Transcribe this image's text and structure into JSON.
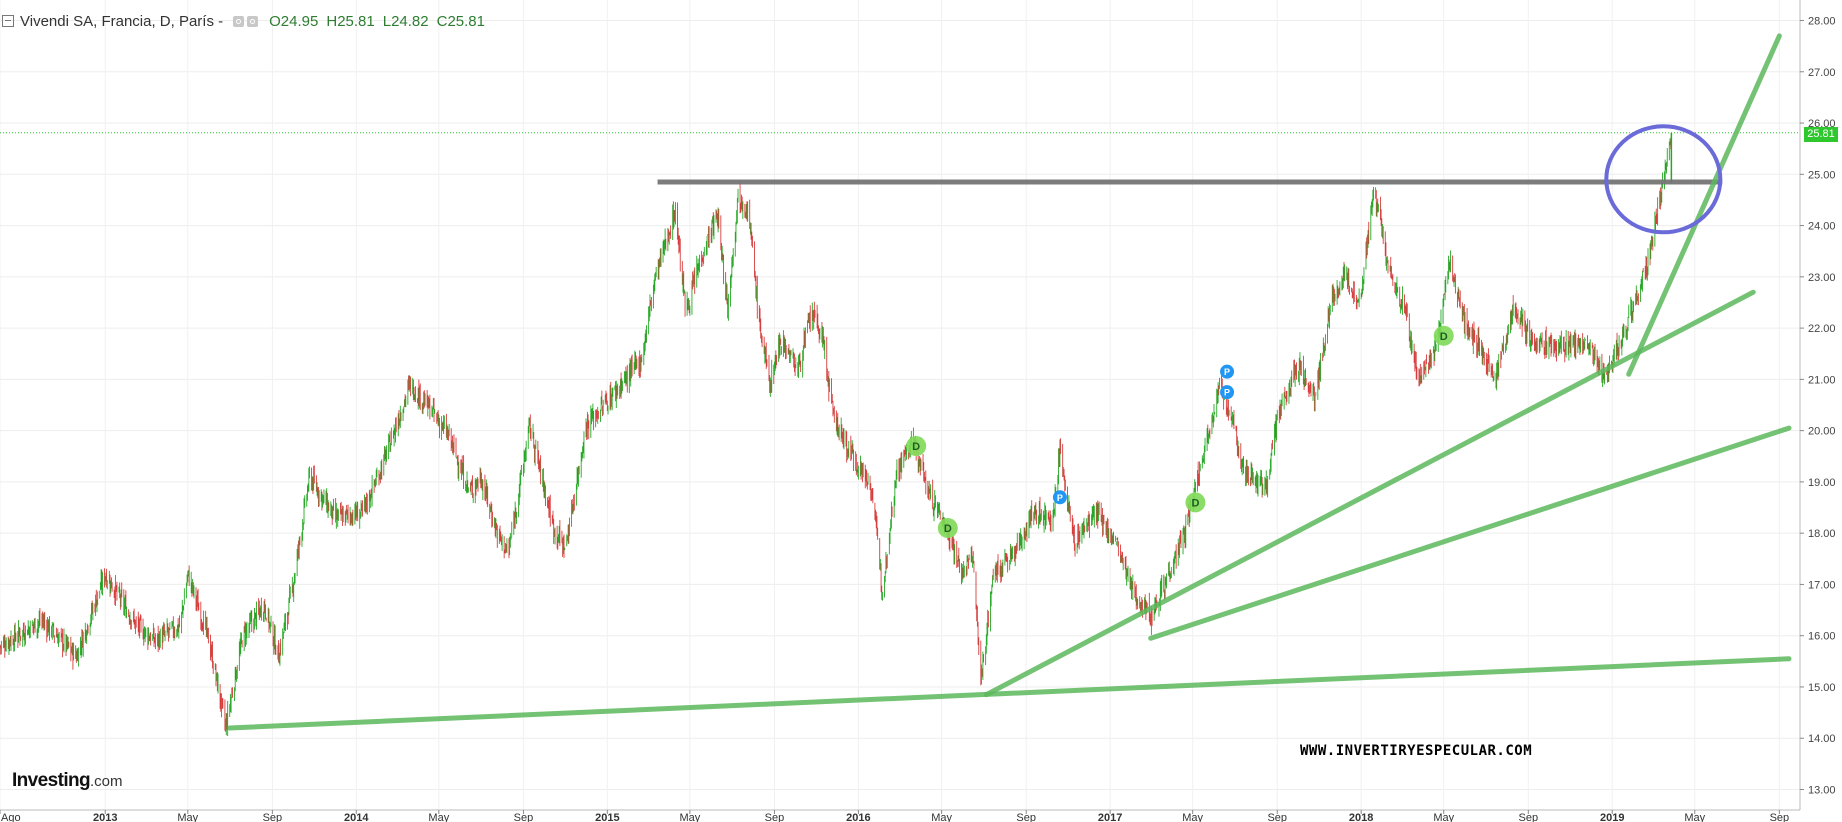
{
  "header": {
    "symbol": "Vivendi SA, Francia, D, París -",
    "open": "O24.95",
    "high": "H25.81",
    "low": "L24.82",
    "close": "C25.81"
  },
  "brand": {
    "name": "Investing",
    "suffix": ".com"
  },
  "watermark": "WWW.INVERTIRYESPECULAR.COM",
  "last_price_label": "25.81",
  "colors": {
    "up": "#26a826",
    "down": "#d63c3c",
    "trendline": "#5cb85c",
    "resistance": "#757575",
    "highlight_circle": "#6a6ad8",
    "dividend_marker": "#7ed957",
    "p_marker": "#2196f3",
    "price_tag": "#2ec72e"
  },
  "chart_data": {
    "type": "candlestick",
    "title": "Vivendi SA, Francia, D, París",
    "ylim": [
      12.6,
      28.4
    ],
    "xlim": [
      "2012-08-01",
      "2019-10-01"
    ],
    "y_ticks": [
      "13.00",
      "14.00",
      "15.00",
      "16.00",
      "17.00",
      "18.00",
      "19.00",
      "20.00",
      "21.00",
      "22.00",
      "23.00",
      "24.00",
      "25.00",
      "26.00",
      "27.00",
      "28.00"
    ],
    "x_ticks": [
      {
        "label": "Ago",
        "date": "2012-08-01"
      },
      {
        "label": "2013",
        "date": "2013-01-01"
      },
      {
        "label": "May",
        "date": "2013-05-01"
      },
      {
        "label": "Sep",
        "date": "2013-09-01"
      },
      {
        "label": "2014",
        "date": "2014-01-01"
      },
      {
        "label": "May",
        "date": "2014-05-01"
      },
      {
        "label": "Sep",
        "date": "2014-09-01"
      },
      {
        "label": "2015",
        "date": "2015-01-01"
      },
      {
        "label": "May",
        "date": "2015-05-01"
      },
      {
        "label": "Sep",
        "date": "2015-09-01"
      },
      {
        "label": "2016",
        "date": "2016-01-01"
      },
      {
        "label": "May",
        "date": "2016-05-01"
      },
      {
        "label": "Sep",
        "date": "2016-09-01"
      },
      {
        "label": "2017",
        "date": "2017-01-01"
      },
      {
        "label": "May",
        "date": "2017-05-01"
      },
      {
        "label": "Sep",
        "date": "2017-09-01"
      },
      {
        "label": "2018",
        "date": "2018-01-01"
      },
      {
        "label": "May",
        "date": "2018-05-01"
      },
      {
        "label": "Sep",
        "date": "2018-09-01"
      },
      {
        "label": "2019",
        "date": "2019-01-01"
      },
      {
        "label": "May",
        "date": "2019-05-01"
      },
      {
        "label": "Sep",
        "date": "2019-09-01"
      }
    ],
    "price_path": [
      [
        "2012-08-01",
        15.8
      ],
      [
        "2012-10-01",
        16.3
      ],
      [
        "2012-11-20",
        15.6
      ],
      [
        "2013-01-01",
        17.2
      ],
      [
        "2013-02-15",
        16.2
      ],
      [
        "2013-03-15",
        15.9
      ],
      [
        "2013-04-20",
        16.2
      ],
      [
        "2013-05-01",
        17.2
      ],
      [
        "2013-06-01",
        15.9
      ],
      [
        "2013-06-25",
        14.2
      ],
      [
        "2013-07-20",
        16.0
      ],
      [
        "2013-08-20",
        16.6
      ],
      [
        "2013-09-10",
        15.6
      ],
      [
        "2013-10-01",
        17.0
      ],
      [
        "2013-10-25",
        19.1
      ],
      [
        "2013-12-01",
        18.3
      ],
      [
        "2014-01-10",
        18.4
      ],
      [
        "2014-02-10",
        19.4
      ],
      [
        "2014-03-20",
        20.9
      ],
      [
        "2014-04-20",
        20.4
      ],
      [
        "2014-05-15",
        19.9
      ],
      [
        "2014-06-15",
        18.8
      ],
      [
        "2014-07-01",
        19.1
      ],
      [
        "2014-07-25",
        18.0
      ],
      [
        "2014-08-10",
        17.6
      ],
      [
        "2014-09-10",
        20.1
      ],
      [
        "2014-10-15",
        18.1
      ],
      [
        "2014-11-01",
        17.7
      ],
      [
        "2014-12-01",
        20.1
      ],
      [
        "2015-01-15",
        20.8
      ],
      [
        "2015-02-20",
        21.4
      ],
      [
        "2015-03-10",
        22.9
      ],
      [
        "2015-03-25",
        23.6
      ],
      [
        "2015-04-10",
        24.3
      ],
      [
        "2015-04-25",
        22.3
      ],
      [
        "2015-05-20",
        23.5
      ],
      [
        "2015-06-10",
        24.2
      ],
      [
        "2015-06-25",
        22.4
      ],
      [
        "2015-07-10",
        24.6
      ],
      [
        "2015-07-25",
        24.3
      ],
      [
        "2015-08-10",
        22.1
      ],
      [
        "2015-08-25",
        20.9
      ],
      [
        "2015-09-10",
        21.8
      ],
      [
        "2015-10-05",
        21.2
      ],
      [
        "2015-10-25",
        22.3
      ],
      [
        "2015-11-10",
        21.8
      ],
      [
        "2015-11-25",
        20.3
      ],
      [
        "2015-12-15",
        19.7
      ],
      [
        "2016-01-20",
        18.9
      ],
      [
        "2016-02-05",
        16.9
      ],
      [
        "2016-02-25",
        19.2
      ],
      [
        "2016-03-20",
        19.8
      ],
      [
        "2016-04-15",
        18.7
      ],
      [
        "2016-05-05",
        18.2
      ],
      [
        "2016-06-01",
        17.2
      ],
      [
        "2016-06-15",
        17.6
      ],
      [
        "2016-06-27",
        15.1
      ],
      [
        "2016-07-15",
        17.2
      ],
      [
        "2016-08-15",
        17.6
      ],
      [
        "2016-09-10",
        18.4
      ],
      [
        "2016-10-10",
        18.3
      ],
      [
        "2016-10-20",
        19.6
      ],
      [
        "2016-11-10",
        17.8
      ],
      [
        "2016-12-10",
        18.4
      ],
      [
        "2017-01-10",
        17.8
      ],
      [
        "2017-02-01",
        16.9
      ],
      [
        "2017-03-01",
        16.4
      ],
      [
        "2017-03-20",
        17.0
      ],
      [
        "2017-04-20",
        18.0
      ],
      [
        "2017-05-20",
        19.8
      ],
      [
        "2017-06-10",
        20.9
      ],
      [
        "2017-06-25",
        20.3
      ],
      [
        "2017-07-15",
        19.2
      ],
      [
        "2017-08-15",
        18.9
      ],
      [
        "2017-09-01",
        20.2
      ],
      [
        "2017-10-01",
        21.3
      ],
      [
        "2017-10-25",
        20.6
      ],
      [
        "2017-11-20",
        22.6
      ],
      [
        "2017-12-10",
        23.0
      ],
      [
        "2017-12-30",
        22.5
      ],
      [
        "2018-01-20",
        24.7
      ],
      [
        "2018-02-10",
        23.1
      ],
      [
        "2018-03-05",
        22.4
      ],
      [
        "2018-03-25",
        21.0
      ],
      [
        "2018-04-20",
        21.6
      ],
      [
        "2018-05-10",
        23.3
      ],
      [
        "2018-06-01",
        22.1
      ],
      [
        "2018-06-20",
        21.7
      ],
      [
        "2018-07-15",
        21.0
      ],
      [
        "2018-08-10",
        22.4
      ],
      [
        "2018-09-10",
        21.7
      ],
      [
        "2018-10-10",
        21.6
      ],
      [
        "2018-11-10",
        21.7
      ],
      [
        "2018-12-01",
        21.6
      ],
      [
        "2018-12-20",
        21.1
      ],
      [
        "2019-01-15",
        21.8
      ],
      [
        "2019-02-05",
        22.6
      ],
      [
        "2019-02-25",
        23.4
      ],
      [
        "2019-03-10",
        24.4
      ],
      [
        "2019-03-28",
        25.81
      ]
    ],
    "resistance": {
      "y": 24.85,
      "from": "2015-03-15",
      "to": "2019-06-10"
    },
    "trendlines": [
      {
        "from": [
          "2013-07-01",
          14.2
        ],
        "to": [
          "2019-09-15",
          15.55
        ]
      },
      {
        "from": [
          "2016-07-05",
          14.85
        ],
        "to": [
          "2019-07-25",
          22.7
        ]
      },
      {
        "from": [
          "2017-03-01",
          15.95
        ],
        "to": [
          "2019-09-15",
          20.05
        ]
      },
      {
        "from": [
          "2019-01-25",
          21.1
        ],
        "to": [
          "2019-09-01",
          27.7
        ]
      }
    ],
    "markers": [
      {
        "type": "D",
        "date": "2016-03-25",
        "price": 19.7
      },
      {
        "type": "D",
        "date": "2016-05-10",
        "price": 18.1
      },
      {
        "type": "P",
        "date": "2016-10-20",
        "price": 18.7
      },
      {
        "type": "D",
        "date": "2017-05-05",
        "price": 18.6
      },
      {
        "type": "P",
        "date": "2017-06-20",
        "price": 21.15
      },
      {
        "type": "P",
        "date": "2017-06-20",
        "price": 20.75
      },
      {
        "type": "D",
        "date": "2018-05-01",
        "price": 21.85
      }
    ],
    "marker_labels": {
      "D": "D",
      "P": "P"
    },
    "highlight": {
      "date": "2019-03-25",
      "price": 25.0,
      "note": "breakout circle"
    },
    "last_price": 25.81,
    "grid": true,
    "legend": "none"
  }
}
